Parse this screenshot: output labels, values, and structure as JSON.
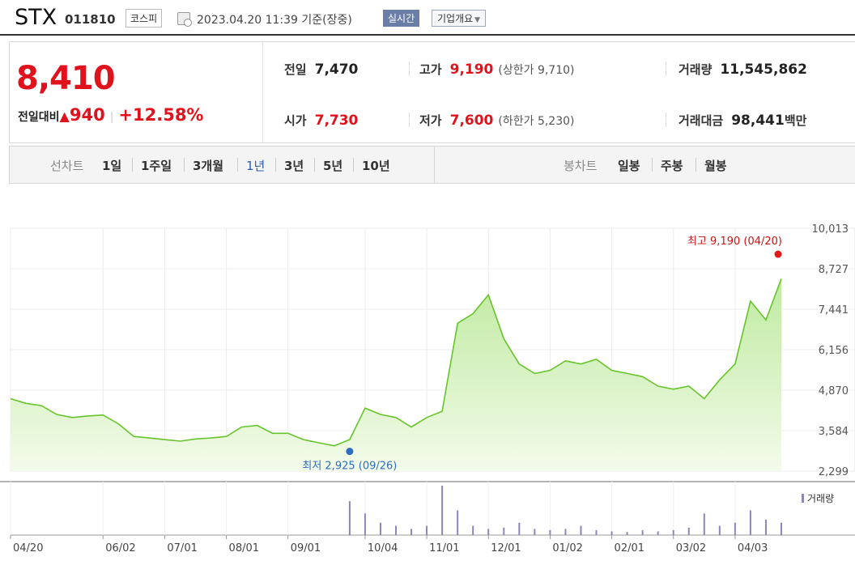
{
  "stock": {
    "name": "STX",
    "code": "011810",
    "market": "코스피",
    "timestamp": "2023.04.20 11:39 기준(장중)",
    "realtime_btn": "실시간",
    "company_btn": "기업개요"
  },
  "price": {
    "current": "8,410",
    "change_label": "전일대비",
    "change_arrow": "▲",
    "change_amount": "940",
    "change_pct": "+12.58%"
  },
  "stats": {
    "prev_label": "전일",
    "prev_value": "7,470",
    "open_label": "시가",
    "open_value": "7,730",
    "high_label": "고가",
    "high_value": "9,190",
    "upper_label": "(상한가 9,710)",
    "low_label": "저가",
    "low_value": "7,600",
    "lower_label": "(하한가 5,230)",
    "volume_label": "거래량",
    "volume_value": "11,545,862",
    "amount_label": "거래대금",
    "amount_value": "98,441",
    "amount_unit": "백만"
  },
  "tabs": {
    "line_label": "선차트",
    "periods": [
      "1일",
      "1주일",
      "3개월",
      "1년",
      "3년",
      "5년",
      "10년"
    ],
    "selected": "1년",
    "candle_label": "봉차트",
    "candles": [
      "일봉",
      "주봉",
      "월봉"
    ]
  },
  "chart_data": {
    "type": "area",
    "y_ticks": [
      "10,013",
      "8,727",
      "7,441",
      "6,156",
      "4,870",
      "3,584",
      "2,299"
    ],
    "ylim": [
      2299,
      10013
    ],
    "x_ticks": [
      "04/20",
      "06/02",
      "07/01",
      "08/01",
      "09/01",
      "10/04",
      "11/01",
      "12/01",
      "01/02",
      "02/01",
      "03/02",
      "04/03"
    ],
    "x": [
      "04/20",
      "04/27",
      "05/04",
      "05/11",
      "05/18",
      "05/25",
      "06/02",
      "06/09",
      "06/16",
      "06/23",
      "07/01",
      "07/08",
      "07/15",
      "07/22",
      "08/01",
      "08/08",
      "08/15",
      "08/22",
      "09/01",
      "09/08",
      "09/15",
      "09/22",
      "09/26",
      "10/04",
      "10/11",
      "10/18",
      "10/25",
      "11/01",
      "11/08",
      "11/15",
      "11/22",
      "12/01",
      "12/08",
      "12/15",
      "12/22",
      "01/02",
      "01/09",
      "01/16",
      "01/23",
      "02/01",
      "02/08",
      "02/15",
      "02/22",
      "03/02",
      "03/09",
      "03/16",
      "03/23",
      "04/03",
      "04/10",
      "04/17",
      "04/20"
    ],
    "series": [
      {
        "values": [
          4600,
          4450,
          4380,
          4100,
          4000,
          4050,
          4080,
          3800,
          3400,
          3350,
          3300,
          3250,
          3320,
          3350,
          3400,
          3700,
          3750,
          3500,
          3500,
          3300,
          3200,
          3100,
          3300,
          4300,
          4100,
          4000,
          3700,
          4000,
          4200,
          7000,
          7300,
          7900,
          6500,
          5700,
          5400,
          5500,
          5800,
          5700,
          5850,
          5500,
          5400,
          5300,
          5000,
          4900,
          5000,
          4600,
          5200,
          5700,
          7700,
          7100,
          8410
        ]
      }
    ],
    "volume": [
      0,
      0,
      0,
      0,
      0,
      0,
      0,
      0,
      0,
      0,
      0,
      0,
      0,
      0,
      0,
      0,
      0,
      0,
      0,
      0,
      0,
      0,
      55,
      35,
      20,
      15,
      10,
      15,
      80,
      40,
      15,
      10,
      12,
      20,
      10,
      8,
      10,
      15,
      8,
      6,
      5,
      8,
      6,
      8,
      12,
      35,
      15,
      20,
      40,
      25,
      20
    ],
    "volume_legend": "거래량",
    "high_annotation": "최고 9,190 (04/20)",
    "low_annotation": "최저 2,925 (09/26)",
    "high": 9190,
    "low": 2925,
    "colors": {
      "line": "#67c42b",
      "fill_top": "#bfeaa0",
      "fill_bottom": "#f3fbea",
      "high": "#e31a1a",
      "low": "#2c6dc1",
      "volume": "#8c86bd"
    }
  }
}
